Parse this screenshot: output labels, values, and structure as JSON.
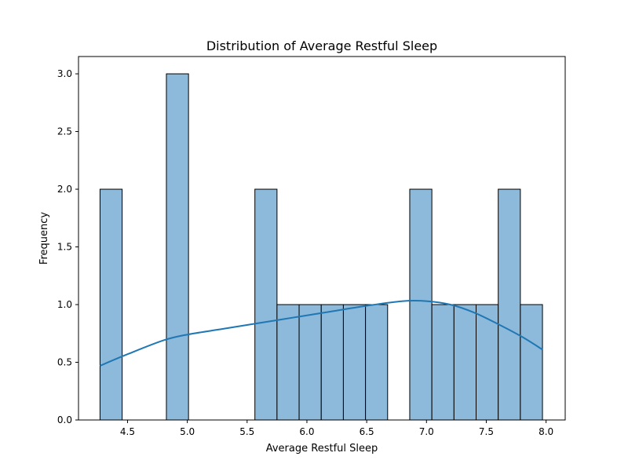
{
  "chart_data": {
    "type": "bar",
    "title": "Distribution of Average Restful Sleep",
    "xlabel": "Average Restful Sleep",
    "ylabel": "Frequency",
    "xlim": [
      4.09,
      8.16
    ],
    "ylim": [
      0,
      3.15
    ],
    "x_ticks": [
      4.5,
      5.0,
      5.5,
      6.0,
      6.5,
      7.0,
      7.5,
      8.0
    ],
    "x_tick_labels": [
      "4.5",
      "5.0",
      "5.5",
      "6.0",
      "6.5",
      "7.0",
      "7.5",
      "8.0"
    ],
    "y_ticks": [
      0,
      0.5,
      1.0,
      1.5,
      2.0,
      2.5,
      3.0
    ],
    "y_tick_labels": [
      "0.0",
      "0.5",
      "1.0",
      "1.5",
      "2.0",
      "2.5",
      "3.0"
    ],
    "bin_edges": [
      4.27,
      4.455,
      4.64,
      4.825,
      5.01,
      5.195,
      5.38,
      5.565,
      5.75,
      5.935,
      6.12,
      6.305,
      6.49,
      6.675,
      6.86,
      7.045,
      7.23,
      7.415,
      7.6,
      7.785,
      7.97
    ],
    "counts": [
      2,
      0,
      0,
      3,
      0,
      0,
      0,
      2,
      1,
      1,
      1,
      1,
      1,
      0,
      2,
      1,
      1,
      1,
      2,
      1
    ],
    "kde": {
      "x": [
        4.27,
        4.5,
        4.8,
        5.0,
        5.3,
        5.6,
        5.9,
        6.2,
        6.5,
        6.8,
        7.0,
        7.2,
        7.4,
        7.6,
        7.8,
        7.97
      ],
      "y": [
        0.47,
        0.57,
        0.69,
        0.74,
        0.79,
        0.84,
        0.89,
        0.94,
        0.99,
        1.03,
        1.03,
        1.0,
        0.93,
        0.83,
        0.72,
        0.61
      ]
    },
    "bar_color": "#8db9da",
    "bar_edge_color": "#000000",
    "kde_color": "#1f77b4",
    "grid": false,
    "legend": "none"
  }
}
